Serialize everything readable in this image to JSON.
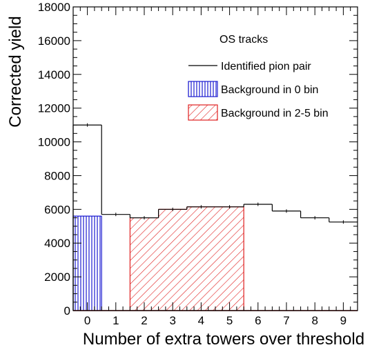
{
  "chart_data": {
    "type": "bar",
    "title": "",
    "xlabel": "Number of extra towers over threshold",
    "ylabel": "Corrected yield",
    "categories": [
      "0",
      "1",
      "2",
      "3",
      "4",
      "5",
      "6",
      "7",
      "8",
      "9"
    ],
    "x": [
      0,
      1,
      2,
      3,
      4,
      5,
      6,
      7,
      8,
      9
    ],
    "xlim": [
      -0.5,
      9.5
    ],
    "ylim": [
      0,
      18000
    ],
    "yticks": [
      0,
      2000,
      4000,
      6000,
      8000,
      10000,
      12000,
      14000,
      16000,
      18000
    ],
    "ytick_labels": [
      "0",
      "2000",
      "4000",
      "6000",
      "8000",
      "10000",
      "12000",
      "14000",
      "16000",
      "18000"
    ],
    "grid": false,
    "legend": {
      "placement": "top-right",
      "header": "OS tracks",
      "entries": [
        {
          "label": "Identified pion pair",
          "style": "line",
          "color": "#000000"
        },
        {
          "label": "Background in 0 bin",
          "style": "vertical-hatch",
          "color": "#1a1ad0"
        },
        {
          "label": "Background in 2-5 bin",
          "style": "diagonal-hatch",
          "color": "#e01e1e"
        }
      ]
    },
    "series": [
      {
        "name": "Identified pion pair",
        "style": "step",
        "color": "#000000",
        "values": [
          11000,
          5700,
          5500,
          6000,
          6150,
          6150,
          6300,
          5900,
          5500,
          5250
        ]
      },
      {
        "name": "Background in 0 bin",
        "style": "vertical-hatch",
        "color": "#1a1ad0",
        "values": [
          5600,
          0,
          0,
          0,
          0,
          0,
          0,
          0,
          0,
          0
        ]
      },
      {
        "name": "Background in 2-5 bin",
        "style": "diagonal-hatch",
        "color": "#e01e1e",
        "values": [
          0,
          0,
          5500,
          6000,
          6150,
          6150,
          0,
          0,
          0,
          0
        ]
      }
    ]
  }
}
